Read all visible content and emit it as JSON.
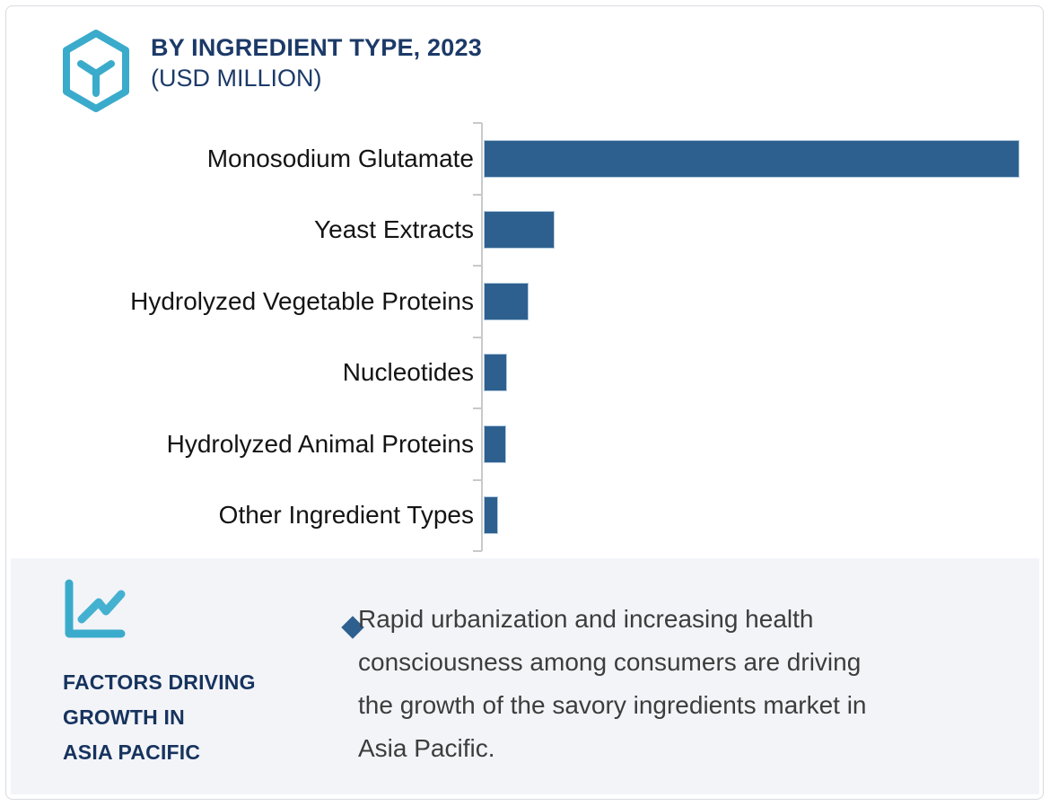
{
  "header": {
    "title_line1": "BY INGREDIENT TYPE, 2023",
    "title_line2": "(USD MILLION)",
    "icon": "hexagon-cube-icon"
  },
  "chart_data": {
    "type": "bar",
    "orientation": "horizontal",
    "title": "BY INGREDIENT TYPE, 2023",
    "subtitle": "(USD MILLION)",
    "categories": [
      "Monosodium Glutamate",
      "Yeast Extracts",
      "Hydrolyzed Vegetable Proteins",
      "Nucleotides",
      "Hydrolyzed Animal Proteins",
      "Other Ingredient Types"
    ],
    "values": [
      100,
      13.2,
      8.4,
      4.3,
      4.2,
      2.7
    ],
    "value_units": "percent of longest bar (no numeric x-axis labels are shown in the figure)",
    "bar_color": "#2e608f",
    "axis": {
      "gridlines": false,
      "x_tick_labels": false,
      "category_boundary_ticks": 7,
      "axis_color": "#c9c9c9"
    },
    "legend": "none"
  },
  "insight_panel": {
    "icon": "line-chart-icon",
    "heading_lines": [
      "FACTORS DRIVING",
      "GROWTH IN",
      "ASIA PACIFIC"
    ],
    "bullet_marker": "diamond",
    "bullet_lines": [
      "Rapid urbanization and increasing health",
      "consciousness among consumers are driving",
      "the growth of the savory ingredients market in",
      "Asia Pacific."
    ]
  },
  "colors": {
    "bar_blue": "#2e608f",
    "navy_text": "#1c3a68",
    "heading_navy": "#16335e",
    "teal_icon": "#3babcb",
    "panel_background": "#f3f4f8",
    "card_border": "#d9dbe1",
    "axis_gray": "#c9c9c9",
    "body_text": "#3d3d3d"
  }
}
